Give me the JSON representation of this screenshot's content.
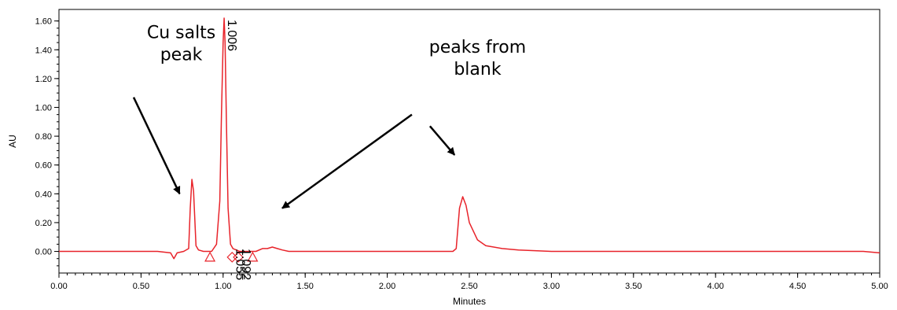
{
  "chart_data": {
    "type": "line",
    "title": "",
    "xlabel": "Minutes",
    "ylabel": "AU",
    "xlim": [
      0,
      5
    ],
    "ylim": [
      -0.15,
      1.68
    ],
    "x_ticks": [
      "0.00",
      "0.50",
      "1.00",
      "1.50",
      "2.00",
      "2.50",
      "3.00",
      "3.50",
      "4.00",
      "4.50",
      "5.00"
    ],
    "y_ticks": [
      "0.00",
      "0.20",
      "0.40",
      "0.60",
      "0.80",
      "1.00",
      "1.20",
      "1.40",
      "1.60"
    ],
    "series": [
      {
        "color": "#e8232a",
        "x": [
          0.0,
          0.6,
          0.68,
          0.7,
          0.72,
          0.76,
          0.79,
          0.8,
          0.81,
          0.82,
          0.835,
          0.85,
          0.88,
          0.93,
          0.96,
          0.98,
          0.99,
          1.0,
          1.006,
          1.012,
          1.02,
          1.03,
          1.045,
          1.06,
          1.08,
          1.1,
          1.15,
          1.2,
          1.24,
          1.27,
          1.3,
          1.33,
          1.36,
          1.4,
          1.5,
          2.0,
          2.4,
          2.42,
          2.44,
          2.46,
          2.48,
          2.5,
          2.55,
          2.6,
          2.7,
          2.8,
          3.0,
          4.0,
          4.9,
          5.0
        ],
        "y": [
          0.0,
          0.0,
          -0.01,
          -0.05,
          -0.01,
          0.0,
          0.02,
          0.3,
          0.5,
          0.42,
          0.04,
          0.01,
          0.0,
          0.0,
          0.05,
          0.35,
          0.95,
          1.45,
          1.62,
          1.45,
          0.9,
          0.3,
          0.05,
          0.02,
          0.01,
          0.0,
          0.0,
          0.0,
          0.02,
          0.02,
          0.03,
          0.02,
          0.01,
          0.0,
          0.0,
          0.0,
          0.0,
          0.02,
          0.3,
          0.38,
          0.32,
          0.2,
          0.08,
          0.04,
          0.02,
          0.01,
          0.0,
          0.0,
          0.0,
          -0.01
        ]
      }
    ],
    "peak_labels": [
      {
        "x": 1.006,
        "y": 1.62,
        "text": "1.006"
      },
      {
        "x": 1.055,
        "y": 0.03,
        "text": "1.055"
      },
      {
        "x": 1.092,
        "y": 0.03,
        "text": "1.092"
      }
    ],
    "markers": [
      {
        "shape": "triangle",
        "x": 0.92,
        "y": -0.04
      },
      {
        "shape": "diamond",
        "x": 1.055,
        "y": -0.04
      },
      {
        "shape": "diamond",
        "x": 1.092,
        "y": -0.04
      },
      {
        "shape": "triangle",
        "x": 1.18,
        "y": -0.04
      }
    ],
    "annotations": [
      {
        "lines": [
          "Cu salts",
          "peak"
        ],
        "text_x": 0.745,
        "text_y": 1.48,
        "arrow_from": [
          0.455,
          1.07
        ],
        "arrow_to": [
          0.735,
          0.4
        ]
      },
      {
        "lines": [
          "peaks from",
          "blank"
        ],
        "text_x": 2.55,
        "text_y": 1.38,
        "arrow_from": [
          2.15,
          0.95
        ],
        "arrow_to": [
          1.36,
          0.3
        ]
      },
      {
        "lines": [],
        "arrow_from": [
          2.26,
          0.87
        ],
        "arrow_to": [
          2.41,
          0.67
        ]
      }
    ]
  }
}
